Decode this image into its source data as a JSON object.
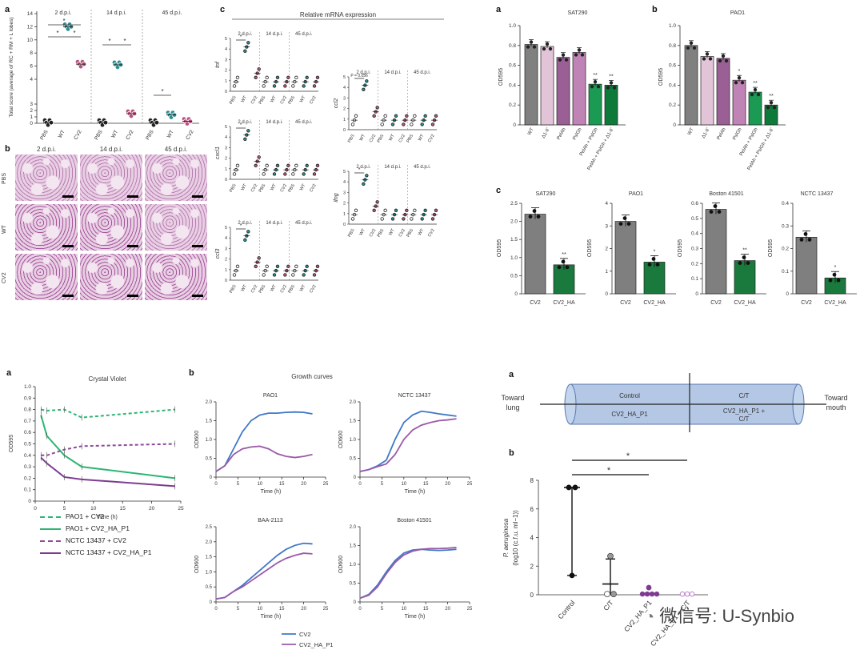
{
  "panelTopLeft": {
    "letter": "a",
    "ylabel": "Total score (average of RC + RM + L lobes)",
    "groups": [
      "2 d.p.i.",
      "14 d.p.i.",
      "45 d.p.i."
    ],
    "xticks": [
      "PBS",
      "WT",
      "CV2"
    ],
    "yticks": [
      "0",
      "1",
      "2",
      "3",
      "4",
      "6",
      "8",
      "10",
      "12",
      "14"
    ]
  },
  "histology": {
    "letter": "b",
    "cols": [
      "2 d.p.i.",
      "14 d.p.i.",
      "45 d.p.i."
    ],
    "rows": [
      "PBS",
      "WT",
      "CV2"
    ]
  },
  "mrna": {
    "letter": "c",
    "title": "Relative mRNA expression",
    "groups": [
      "2 d.p.i.",
      "14 d.p.i.",
      "45 d.p.i."
    ],
    "xticks": [
      "PBS",
      "WT",
      "CV2"
    ],
    "genes": [
      "tnf",
      "cxcl1",
      "ccl3",
      "ccl2",
      "ifng"
    ],
    "pval": "P = 0.056"
  },
  "odTop": {
    "letter_a": "a",
    "letter_b": "b",
    "ylabel": "OD595",
    "panels": [
      {
        "title": "SAT290",
        "categories": [
          "WT",
          "Δ1-II'",
          "PelAh",
          "PslGh",
          "PelAh + PslGh",
          "PelAh + PslGh + Δ1-II'"
        ],
        "values": [
          0.81,
          0.79,
          0.68,
          0.73,
          0.41,
          0.4
        ],
        "colors": [
          "#808080",
          "#e3c3d8",
          "#9a5f95",
          "#bf83b5",
          "#1a9a52",
          "#0e7a3a"
        ],
        "stars": [
          "",
          "",
          "",
          "",
          "**",
          "**"
        ],
        "ylim": [
          0,
          1.0
        ],
        "yticks": [
          "0",
          "0.2",
          "0.4",
          "0.6",
          "0.8",
          "1.0"
        ]
      },
      {
        "title": "PAO1",
        "categories": [
          "WT",
          "Δ1-II'",
          "PelAh",
          "PslGh",
          "PelAh + PslGh",
          "PelAh + PslGh + Δ1-II'"
        ],
        "values": [
          0.8,
          0.69,
          0.67,
          0.45,
          0.33,
          0.2
        ],
        "colors": [
          "#808080",
          "#e3c3d8",
          "#9a5f95",
          "#bf83b5",
          "#1a9a52",
          "#0e7a3a"
        ],
        "stars": [
          "",
          "",
          "",
          "*",
          "**",
          "**"
        ],
        "ylim": [
          0,
          1.0
        ],
        "yticks": [
          "0",
          "0.2",
          "0.4",
          "0.6",
          "0.8",
          "1.0"
        ]
      }
    ]
  },
  "odMid": {
    "letter": "c",
    "ylabel": "OD595",
    "panels": [
      {
        "title": "SAT290",
        "categories": [
          "CV2",
          "CV2_HA"
        ],
        "values": [
          2.2,
          0.8
        ],
        "stars": [
          "",
          "**"
        ],
        "ylim": [
          0,
          2.5
        ],
        "yticks": [
          "0",
          "0.5",
          "1.0",
          "1.5",
          "2.0",
          "2.5"
        ]
      },
      {
        "title": "PAO1",
        "categories": [
          "CV2",
          "CV2_HA"
        ],
        "values": [
          3.2,
          1.4
        ],
        "stars": [
          "",
          "*"
        ],
        "ylim": [
          0,
          4
        ],
        "yticks": [
          "0",
          "1",
          "2",
          "3",
          "4"
        ]
      },
      {
        "title": "Boston 41501",
        "categories": [
          "CV2",
          "CV2_HA"
        ],
        "values": [
          0.56,
          0.22
        ],
        "stars": [
          "",
          "**"
        ],
        "ylim": [
          0,
          0.6
        ],
        "yticks": [
          "0",
          "0.1",
          "0.2",
          "0.3",
          "0.4",
          "0.5",
          "0.6"
        ]
      },
      {
        "title": "NCTC 13437",
        "categories": [
          "CV2",
          "CV2_HA"
        ],
        "values": [
          0.25,
          0.07
        ],
        "stars": [
          "",
          "*"
        ],
        "ylim": [
          0,
          0.4
        ],
        "yticks": [
          "0",
          "0.1",
          "0.2",
          "0.3",
          "0.4"
        ]
      }
    ]
  },
  "crystal": {
    "letter": "a",
    "title": "Crystal Violet",
    "ylabel": "OD595",
    "xlabel": "Time (h)",
    "xticks": [
      "0",
      "5",
      "10",
      "15",
      "20",
      "25"
    ],
    "yticks": [
      "0",
      "0.1",
      "0.2",
      "0.3",
      "0.4",
      "0.5",
      "0.6",
      "0.7",
      "0.8",
      "0.9",
      "1.0"
    ],
    "legend": [
      "PAO1 + CV2",
      "PAO1 + CV2_HA_P1",
      "NCTC 13437 + CV2",
      "NCTC 13437 + CV2_HA_P1"
    ]
  },
  "growth": {
    "letter": "b",
    "title": "Growth curves",
    "xlabel": "Time (h)",
    "ylabel": "OD600",
    "panels": [
      {
        "title": "PAO1",
        "yticks": [
          "0",
          "0.5",
          "1.0",
          "1.5",
          "2.0"
        ]
      },
      {
        "title": "NCTC 13437",
        "yticks": [
          "0",
          "0.5",
          "1.0",
          "1.5",
          "2.0"
        ]
      },
      {
        "title": "BAA-2113",
        "yticks": [
          "0",
          "0.5",
          "1.0",
          "1.5",
          "2.0",
          "2.5"
        ]
      },
      {
        "title": "Boston 41501",
        "yticks": [
          "0",
          "0.5",
          "1.0",
          "1.5",
          "2.0"
        ]
      }
    ],
    "xticks": [
      "0",
      "5",
      "10",
      "15",
      "20",
      "25"
    ],
    "legend": [
      "CV2",
      "CV2_HA_P1"
    ]
  },
  "tube": {
    "letter": "a",
    "left": "Toward lung",
    "right": "Toward mouth",
    "cells": [
      "Control",
      "C/T",
      "CV2_HA_P1",
      "CV2_HA_P1 + C/T"
    ]
  },
  "cfu": {
    "letter": "b",
    "ylabel1": "P. aeruginosa",
    "ylabel2": "(log10 (c.f.u. ml−1))",
    "yticks": [
      "0",
      "2",
      "4",
      "6",
      "8"
    ],
    "categories": [
      "Control",
      "C/T",
      "CV2_HA_P1",
      "CV2_HA_P1 + C/T"
    ]
  },
  "watermark": "微信号: U-Synbio",
  "chart_data": [
    {
      "type": "bar",
      "title": "SAT290",
      "categories": [
        "WT",
        "Δ1-II'",
        "PelAh",
        "PslGh",
        "PelAh + PslGh",
        "PelAh + PslGh + Δ1-II'"
      ],
      "values": [
        0.81,
        0.79,
        0.68,
        0.73,
        0.41,
        0.4
      ],
      "ylabel": "OD595",
      "ylim": [
        0,
        1.0
      ]
    },
    {
      "type": "bar",
      "title": "PAO1",
      "categories": [
        "WT",
        "Δ1-II'",
        "PelAh",
        "PslGh",
        "PelAh + PslGh",
        "PelAh + PslGh + Δ1-II'"
      ],
      "values": [
        0.8,
        0.69,
        0.67,
        0.45,
        0.33,
        0.2
      ],
      "ylabel": "OD595",
      "ylim": [
        0,
        1.0
      ]
    },
    {
      "type": "bar",
      "title": "SAT290",
      "categories": [
        "CV2",
        "CV2_HA"
      ],
      "values": [
        2.2,
        0.8
      ],
      "ylabel": "OD595",
      "ylim": [
        0,
        2.5
      ]
    },
    {
      "type": "bar",
      "title": "PAO1",
      "categories": [
        "CV2",
        "CV2_HA"
      ],
      "values": [
        3.2,
        1.4
      ],
      "ylabel": "OD595",
      "ylim": [
        0,
        4
      ]
    },
    {
      "type": "bar",
      "title": "Boston 41501",
      "categories": [
        "CV2",
        "CV2_HA"
      ],
      "values": [
        0.56,
        0.22
      ],
      "ylabel": "OD595",
      "ylim": [
        0,
        0.6
      ]
    },
    {
      "type": "bar",
      "title": "NCTC 13437",
      "categories": [
        "CV2",
        "CV2_HA"
      ],
      "values": [
        0.25,
        0.07
      ],
      "ylabel": "OD595",
      "ylim": [
        0,
        0.4
      ]
    },
    {
      "type": "line",
      "title": "Crystal Violet",
      "xlabel": "Time (h)",
      "ylabel": "OD595",
      "xlim": [
        0,
        25
      ],
      "ylim": [
        0,
        1.0
      ],
      "series": [
        {
          "name": "PAO1 + CV2",
          "x": [
            1,
            2,
            5,
            8,
            24
          ],
          "y": [
            0.8,
            0.79,
            0.8,
            0.73,
            0.8
          ]
        },
        {
          "name": "PAO1 + CV2_HA_P1",
          "x": [
            1,
            2,
            5,
            8,
            24
          ],
          "y": [
            0.75,
            0.57,
            0.4,
            0.3,
            0.2
          ]
        },
        {
          "name": "NCTC 13437 + CV2",
          "x": [
            1,
            2,
            5,
            8,
            24
          ],
          "y": [
            0.4,
            0.4,
            0.45,
            0.48,
            0.5
          ]
        },
        {
          "name": "NCTC 13437 + CV2_HA_P1",
          "x": [
            1,
            2,
            5,
            8,
            24
          ],
          "y": [
            0.38,
            0.33,
            0.21,
            0.19,
            0.13
          ]
        }
      ]
    },
    {
      "type": "line",
      "title": "PAO1",
      "xlabel": "Time (h)",
      "ylabel": "OD600",
      "xlim": [
        0,
        25
      ],
      "ylim": [
        0,
        2.0
      ],
      "series": [
        {
          "name": "CV2",
          "x": [
            0,
            2,
            4,
            6,
            8,
            10,
            12,
            14,
            16,
            18,
            20,
            22
          ],
          "y": [
            0.15,
            0.3,
            0.75,
            1.2,
            1.5,
            1.65,
            1.7,
            1.7,
            1.72,
            1.73,
            1.72,
            1.68
          ]
        },
        {
          "name": "CV2_HA_P1",
          "x": [
            0,
            2,
            4,
            6,
            8,
            10,
            12,
            14,
            16,
            18,
            20,
            22
          ],
          "y": [
            0.15,
            0.3,
            0.6,
            0.75,
            0.8,
            0.82,
            0.75,
            0.62,
            0.55,
            0.52,
            0.55,
            0.6
          ]
        }
      ]
    },
    {
      "type": "line",
      "title": "NCTC 13437",
      "xlabel": "Time (h)",
      "ylabel": "OD600",
      "xlim": [
        0,
        25
      ],
      "ylim": [
        0,
        2.0
      ],
      "series": [
        {
          "name": "CV2",
          "x": [
            0,
            2,
            4,
            6,
            8,
            10,
            12,
            14,
            16,
            18,
            20,
            22
          ],
          "y": [
            0.15,
            0.2,
            0.3,
            0.45,
            1.0,
            1.45,
            1.65,
            1.75,
            1.72,
            1.68,
            1.65,
            1.62
          ]
        },
        {
          "name": "CV2_HA_P1",
          "x": [
            0,
            2,
            4,
            6,
            8,
            10,
            12,
            14,
            16,
            18,
            20,
            22
          ],
          "y": [
            0.15,
            0.2,
            0.28,
            0.35,
            0.6,
            1.0,
            1.25,
            1.38,
            1.45,
            1.5,
            1.52,
            1.55
          ]
        }
      ]
    },
    {
      "type": "line",
      "title": "BAA-2113",
      "xlabel": "Time (h)",
      "ylabel": "OD600",
      "xlim": [
        0,
        25
      ],
      "ylim": [
        0,
        2.5
      ],
      "series": [
        {
          "name": "CV2",
          "x": [
            0,
            2,
            4,
            6,
            8,
            10,
            12,
            14,
            16,
            18,
            20,
            22
          ],
          "y": [
            0.1,
            0.15,
            0.35,
            0.55,
            0.8,
            1.05,
            1.3,
            1.55,
            1.75,
            1.88,
            1.95,
            1.93
          ]
        },
        {
          "name": "CV2_HA_P1",
          "x": [
            0,
            2,
            4,
            6,
            8,
            10,
            12,
            14,
            16,
            18,
            20,
            22
          ],
          "y": [
            0.1,
            0.15,
            0.35,
            0.5,
            0.7,
            0.9,
            1.1,
            1.3,
            1.45,
            1.55,
            1.62,
            1.6
          ]
        }
      ]
    },
    {
      "type": "line",
      "title": "Boston 41501",
      "xlabel": "Time (h)",
      "ylabel": "OD600",
      "xlim": [
        0,
        25
      ],
      "ylim": [
        0,
        2.0
      ],
      "series": [
        {
          "name": "CV2",
          "x": [
            0,
            2,
            4,
            6,
            8,
            10,
            12,
            14,
            16,
            18,
            20,
            22
          ],
          "y": [
            0.1,
            0.2,
            0.45,
            0.8,
            1.1,
            1.3,
            1.38,
            1.4,
            1.38,
            1.37,
            1.38,
            1.4
          ]
        },
        {
          "name": "CV2_HA_P1",
          "x": [
            0,
            2,
            4,
            6,
            8,
            10,
            12,
            14,
            16,
            18,
            20,
            22
          ],
          "y": [
            0.1,
            0.18,
            0.4,
            0.75,
            1.05,
            1.25,
            1.35,
            1.4,
            1.42,
            1.42,
            1.43,
            1.45
          ]
        }
      ]
    }
  ]
}
